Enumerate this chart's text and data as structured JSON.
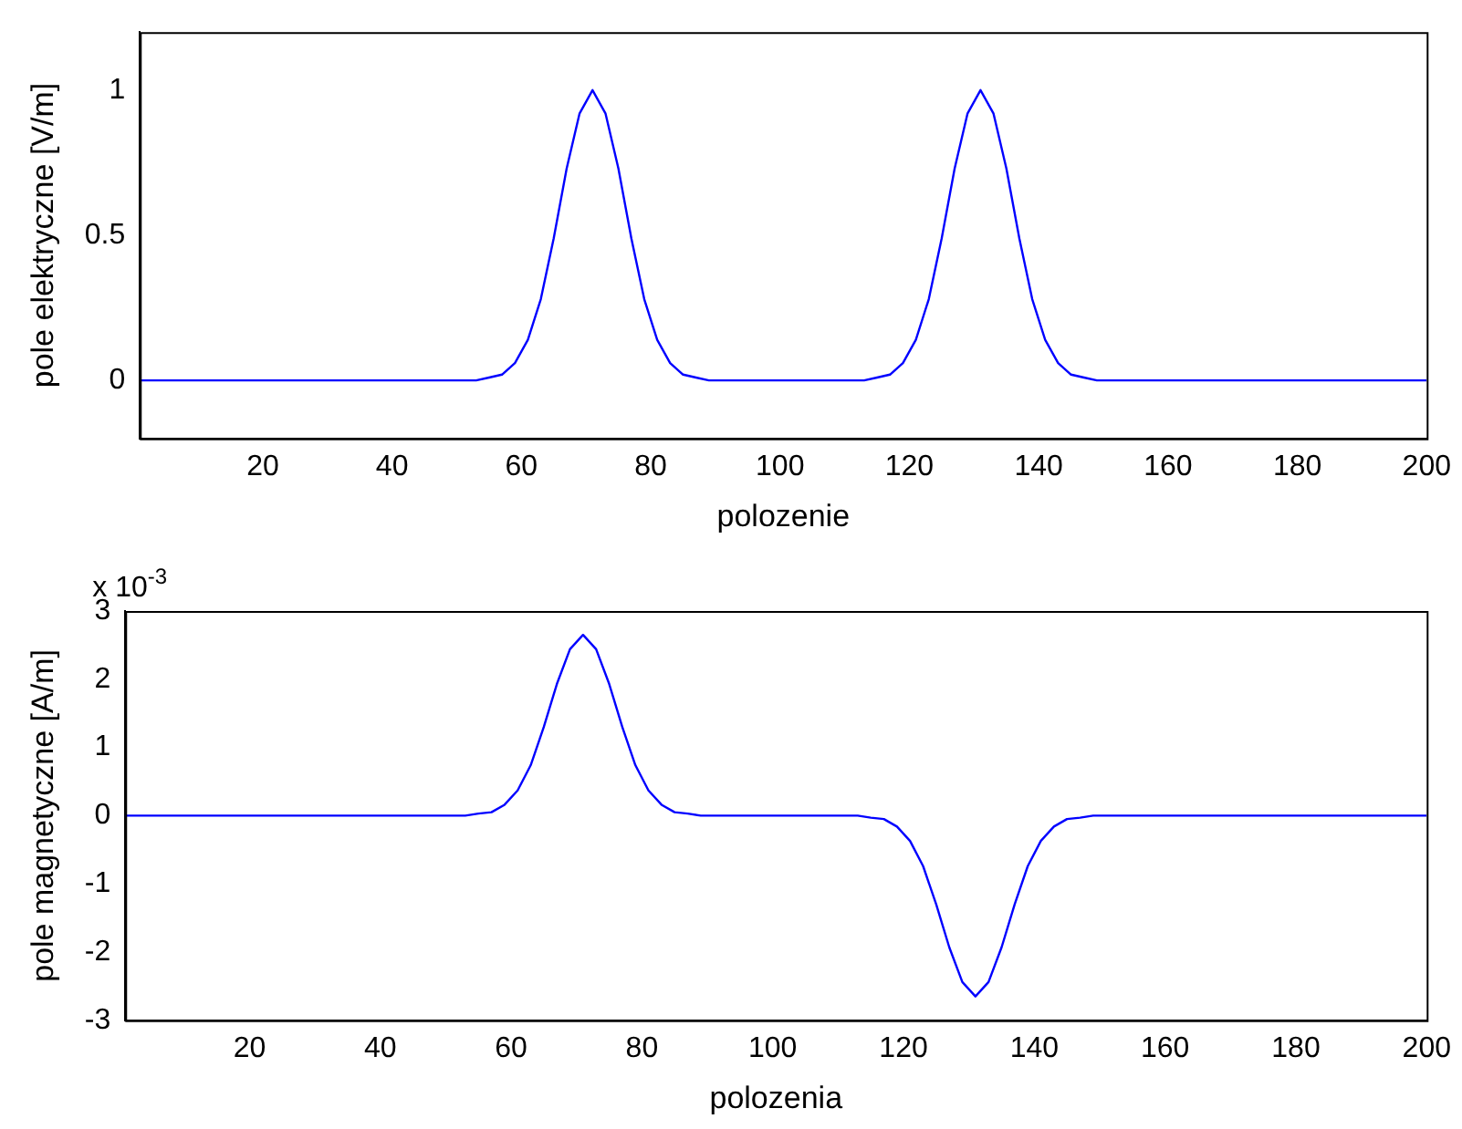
{
  "chart_data": [
    {
      "type": "line",
      "xlabel": "polozenie",
      "ylabel": "pole elektryczne [V/m]",
      "xlim": [
        1,
        200
      ],
      "ylim": [
        -0.2,
        1.2
      ],
      "xticks": [
        20,
        40,
        60,
        80,
        100,
        120,
        140,
        160,
        180,
        200
      ],
      "yticks": [
        0,
        0.5,
        1
      ],
      "grid": false,
      "legend": false,
      "x": [
        1,
        20,
        40,
        50,
        53,
        55,
        57,
        59,
        61,
        63,
        65,
        67,
        69,
        71,
        73,
        75,
        77,
        79,
        81,
        83,
        85,
        87,
        89,
        92,
        100,
        110,
        113,
        115,
        117,
        119,
        121,
        123,
        125,
        127,
        129,
        131,
        133,
        135,
        137,
        139,
        141,
        143,
        145,
        147,
        149,
        152,
        160,
        180,
        200
      ],
      "series": [
        {
          "color": "#0000ff",
          "values": [
            0,
            0,
            0,
            0,
            0,
            0.01,
            0.02,
            0.06,
            0.14,
            0.28,
            0.49,
            0.73,
            0.92,
            1,
            0.92,
            0.73,
            0.49,
            0.28,
            0.14,
            0.06,
            0.02,
            0.01,
            0,
            0,
            0,
            0,
            0,
            0.01,
            0.02,
            0.06,
            0.14,
            0.28,
            0.49,
            0.73,
            0.92,
            1,
            0.92,
            0.73,
            0.49,
            0.28,
            0.14,
            0.06,
            0.02,
            0.01,
            0,
            0,
            0,
            0,
            0
          ]
        }
      ]
    },
    {
      "type": "line",
      "xlabel": "polozenia",
      "ylabel": "pole magnetyczne [A/m]",
      "annotations": [
        "x 10$^{-3}$"
      ],
      "xlim": [
        1,
        200
      ],
      "ylim": [
        -3,
        3
      ],
      "xticks": [
        20,
        40,
        60,
        80,
        100,
        120,
        140,
        160,
        180,
        200
      ],
      "yticks": [
        -3,
        -2,
        -1,
        0,
        1,
        2,
        3
      ],
      "grid": false,
      "legend": false,
      "x": [
        1,
        20,
        40,
        50,
        53,
        55,
        57,
        59,
        61,
        63,
        65,
        67,
        69,
        71,
        73,
        75,
        77,
        79,
        81,
        83,
        85,
        87,
        89,
        92,
        100,
        110,
        113,
        115,
        117,
        119,
        121,
        123,
        125,
        127,
        129,
        131,
        133,
        135,
        137,
        139,
        141,
        143,
        145,
        147,
        149,
        152,
        160,
        180,
        200
      ],
      "series": [
        {
          "color": "#0000ff",
          "values": [
            0,
            0,
            0,
            0,
            0,
            0.03,
            0.05,
            0.16,
            0.37,
            0.74,
            1.3,
            1.93,
            2.44,
            2.65,
            2.44,
            1.93,
            1.3,
            0.74,
            0.37,
            0.16,
            0.05,
            0.03,
            0,
            0,
            0,
            0,
            0,
            -0.03,
            -0.05,
            -0.16,
            -0.37,
            -0.74,
            -1.3,
            -1.93,
            -2.44,
            -2.65,
            -2.44,
            -1.93,
            -1.3,
            -0.74,
            -0.37,
            -0.16,
            -0.05,
            -0.03,
            0,
            0,
            0,
            0,
            0
          ]
        }
      ]
    }
  ]
}
